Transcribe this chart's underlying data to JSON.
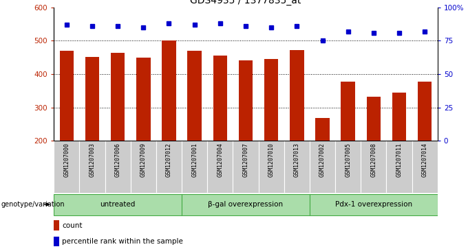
{
  "title": "GDS4935 / 1377835_at",
  "samples": [
    "GSM1207000",
    "GSM1207003",
    "GSM1207006",
    "GSM1207009",
    "GSM1207012",
    "GSM1207001",
    "GSM1207004",
    "GSM1207007",
    "GSM1207010",
    "GSM1207013",
    "GSM1207002",
    "GSM1207005",
    "GSM1207008",
    "GSM1207011",
    "GSM1207014"
  ],
  "counts": [
    470,
    452,
    463,
    449,
    500,
    470,
    456,
    442,
    446,
    472,
    268,
    377,
    332,
    344,
    378
  ],
  "percentile_ranks": [
    87,
    86,
    86,
    85,
    88,
    87,
    88,
    86,
    85,
    86,
    75,
    82,
    81,
    81,
    82
  ],
  "groups": [
    {
      "label": "untreated",
      "start": 0,
      "end": 5
    },
    {
      "label": "β-gal overexpression",
      "start": 5,
      "end": 10
    },
    {
      "label": "Pdx-1 overexpression",
      "start": 10,
      "end": 15
    }
  ],
  "ylim_left": [
    200,
    600
  ],
  "ylim_right": [
    0,
    100
  ],
  "yticks_left": [
    200,
    300,
    400,
    500,
    600
  ],
  "yticks_right": [
    0,
    25,
    50,
    75,
    100
  ],
  "ytick_labels_right": [
    "0",
    "25",
    "50",
    "75",
    "100%"
  ],
  "grid_lines": [
    300,
    400,
    500
  ],
  "bar_color": "#BB2200",
  "dot_color": "#0000CC",
  "bar_bottom": 200,
  "sample_box_color": "#CCCCCC",
  "group_bg_color": "#AADDAA",
  "group_border_color": "#44AA44",
  "legend_count_color": "#BB2200",
  "legend_dot_color": "#0000CC"
}
